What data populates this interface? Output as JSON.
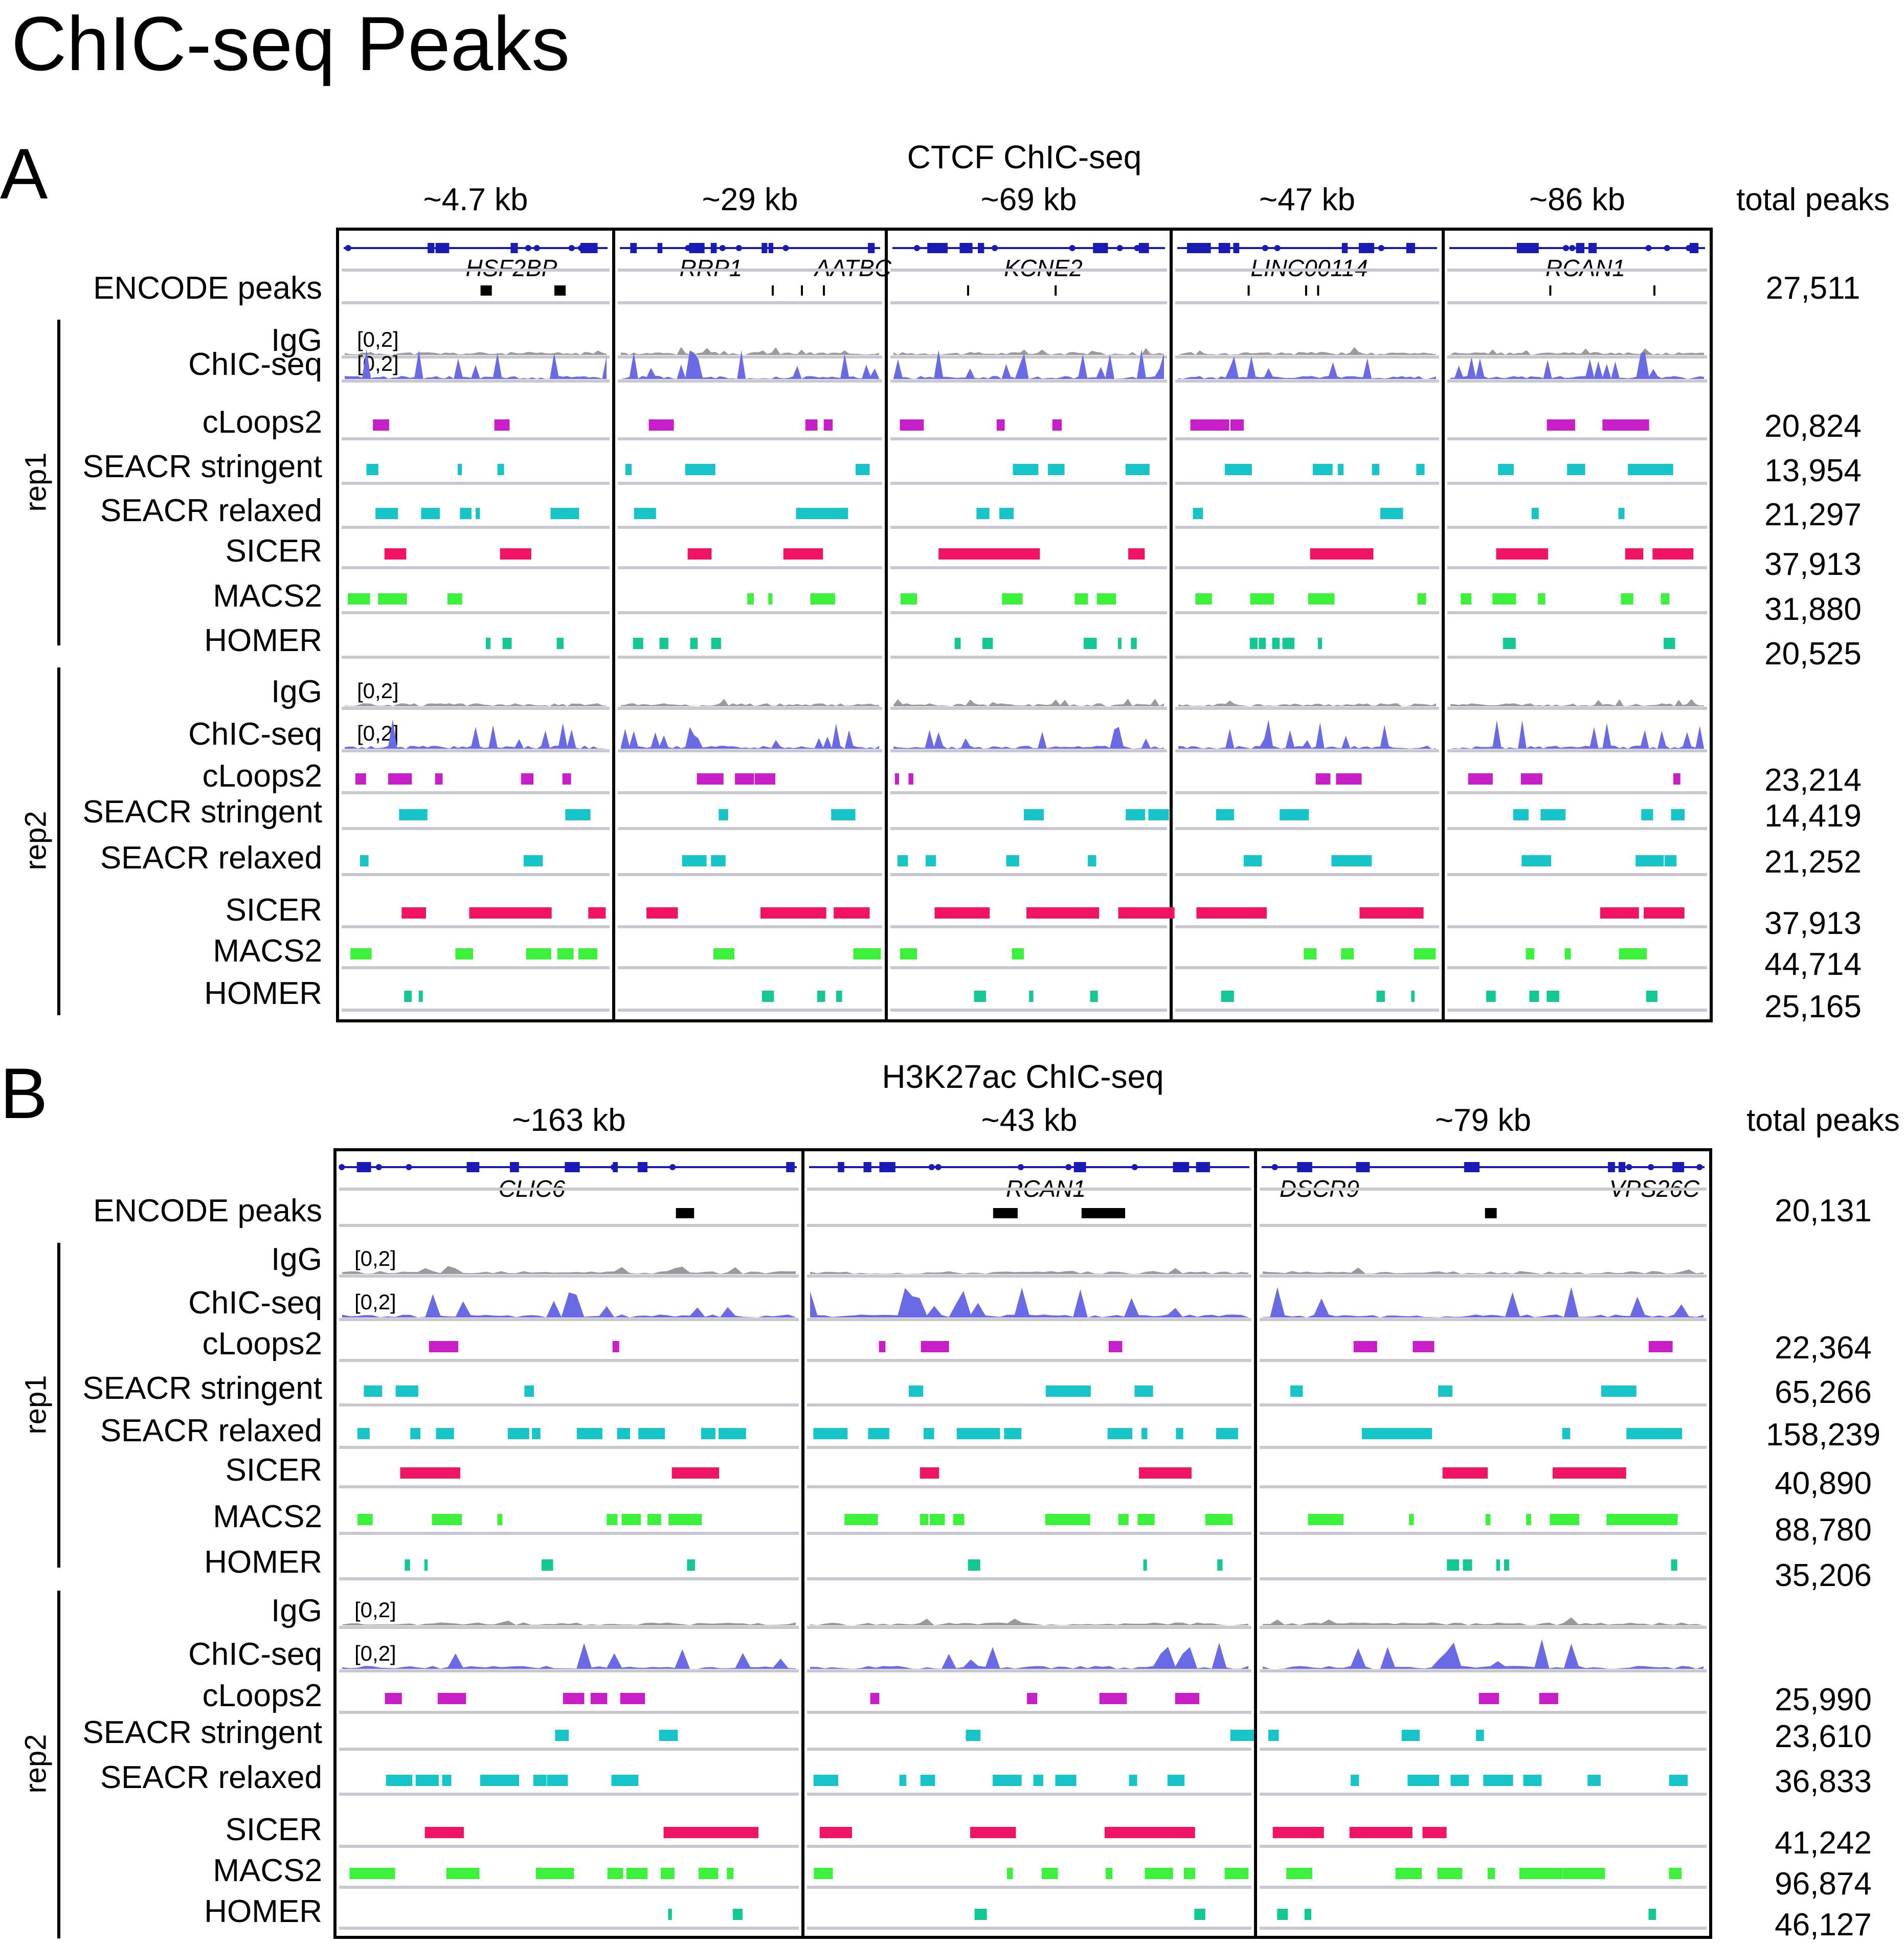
{
  "title": "ChIC-seq Peaks",
  "colors": {
    "gene": "#1a1ab4",
    "encode": "#000000",
    "igg": "#9a9a9a",
    "chic": "#6a6ae6",
    "cloops2": "#c81ec8",
    "seacr_stringent": "#17c4c8",
    "seacr_relaxed": "#17c4c8",
    "sicer": "#f01464",
    "macs2": "#3cf03c",
    "homer": "#14c896",
    "separator": "#c8c8d2"
  },
  "panels": [
    {
      "letter": "A",
      "title": "CTCF ChIC-seq",
      "total_peaks_label": "total peaks",
      "encode_label": "ENCODE peaks",
      "encode_total": "27,511",
      "loci": [
        {
          "span": "~4.7 kb",
          "genes": [
            "HSF2BP"
          ]
        },
        {
          "span": "~29 kb",
          "genes": [
            "RRP1",
            "AATBC"
          ]
        },
        {
          "span": "~69 kb",
          "genes": [
            "KCNE2"
          ]
        },
        {
          "span": "~47 kb",
          "genes": [
            "LINC00114"
          ]
        },
        {
          "span": "~86 kb",
          "genes": [
            "RCAN1"
          ]
        }
      ],
      "reps": [
        {
          "label": "rep1",
          "tracks": [
            {
              "name": "IgG",
              "scale": "[0,2]",
              "total": ""
            },
            {
              "name": "ChIC-seq",
              "scale": "[0,2]",
              "total": ""
            },
            {
              "name": "cLoops2",
              "total": "20,824"
            },
            {
              "name": "SEACR stringent",
              "total": "13,954"
            },
            {
              "name": "SEACR relaxed",
              "total": "21,297"
            },
            {
              "name": "SICER",
              "total": "37,913"
            },
            {
              "name": "MACS2",
              "total": "31,880"
            },
            {
              "name": "HOMER",
              "total": "20,525"
            }
          ]
        },
        {
          "label": "rep2",
          "tracks": [
            {
              "name": "IgG",
              "scale": "[0,2]",
              "total": ""
            },
            {
              "name": "ChIC-seq",
              "scale": "[0,2]",
              "total": ""
            },
            {
              "name": "cLoops2",
              "total": "23,214"
            },
            {
              "name": "SEACR stringent",
              "total": "14,419"
            },
            {
              "name": "SEACR relaxed",
              "total": "21,252"
            },
            {
              "name": "SICER",
              "total": "37,913"
            },
            {
              "name": "MACS2",
              "total": "44,714"
            },
            {
              "name": "HOMER",
              "total": "25,165"
            }
          ]
        }
      ]
    },
    {
      "letter": "B",
      "title": "H3K27ac ChIC-seq",
      "total_peaks_label": "total peaks",
      "encode_label": "ENCODE peaks",
      "encode_total": "20,131",
      "loci": [
        {
          "span": "~163 kb",
          "genes": [
            "CLIC6"
          ]
        },
        {
          "span": "~43 kb",
          "genes": [
            "RCAN1"
          ]
        },
        {
          "span": "~79 kb",
          "genes": [
            "DSCR9",
            "VPS26C"
          ]
        }
      ],
      "reps": [
        {
          "label": "rep1",
          "tracks": [
            {
              "name": "IgG",
              "scale": "[0,2]",
              "total": ""
            },
            {
              "name": "ChIC-seq",
              "scale": "[0,2]",
              "total": ""
            },
            {
              "name": "cLoops2",
              "total": "22,364"
            },
            {
              "name": "SEACR stringent",
              "total": "65,266"
            },
            {
              "name": "SEACR relaxed",
              "total": "158,239"
            },
            {
              "name": "SICER",
              "total": "40,890"
            },
            {
              "name": "MACS2",
              "total": "88,780"
            },
            {
              "name": "HOMER",
              "total": "35,206"
            }
          ]
        },
        {
          "label": "rep2",
          "tracks": [
            {
              "name": "IgG",
              "scale": "[0,2]",
              "total": ""
            },
            {
              "name": "ChIC-seq",
              "scale": "[0,2]",
              "total": ""
            },
            {
              "name": "cLoops2",
              "total": "25,990"
            },
            {
              "name": "SEACR stringent",
              "total": "23,610"
            },
            {
              "name": "SEACR relaxed",
              "total": "36,833"
            },
            {
              "name": "SICER",
              "total": "41,242"
            },
            {
              "name": "MACS2",
              "total": "96,874"
            },
            {
              "name": "HOMER",
              "total": "46,127"
            }
          ]
        }
      ]
    }
  ]
}
